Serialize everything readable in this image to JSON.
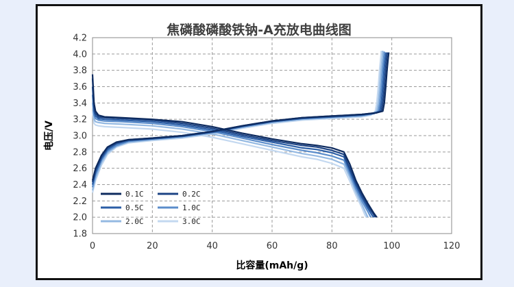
{
  "chart_data": {
    "type": "line",
    "title": "焦磷酸磷酸铁钠-A充放电曲线图",
    "xlabel": "比容量(mAh/g)",
    "ylabel": "电压/V",
    "xlim": [
      0,
      120
    ],
    "ylim": [
      1.8,
      4.2
    ],
    "xticks": [
      0,
      20,
      40,
      60,
      80,
      100,
      120
    ],
    "yticks": [
      1.8,
      2.0,
      2.2,
      2.4,
      2.6,
      2.8,
      3.0,
      3.2,
      3.4,
      3.6,
      3.8,
      4.0,
      4.2
    ],
    "grid": true,
    "legend_position": "bottom-left",
    "series": [
      {
        "name": "0.1C",
        "color": "#0d2a5e",
        "charge": [
          [
            0,
            2.45
          ],
          [
            1,
            2.6
          ],
          [
            3,
            2.76
          ],
          [
            5,
            2.86
          ],
          [
            8,
            2.92
          ],
          [
            12,
            2.95
          ],
          [
            20,
            2.97
          ],
          [
            30,
            3.0
          ],
          [
            40,
            3.05
          ],
          [
            50,
            3.12
          ],
          [
            60,
            3.18
          ],
          [
            70,
            3.22
          ],
          [
            80,
            3.24
          ],
          [
            90,
            3.26
          ],
          [
            95,
            3.28
          ],
          [
            97,
            3.3
          ],
          [
            97.5,
            3.4
          ],
          [
            98,
            3.6
          ],
          [
            98.4,
            3.8
          ],
          [
            98.8,
            3.95
          ],
          [
            99,
            4.02
          ]
        ],
        "discharge": [
          [
            0,
            3.75
          ],
          [
            0.5,
            3.4
          ],
          [
            1,
            3.3
          ],
          [
            2,
            3.25
          ],
          [
            4,
            3.23
          ],
          [
            10,
            3.22
          ],
          [
            20,
            3.2
          ],
          [
            30,
            3.17
          ],
          [
            40,
            3.11
          ],
          [
            50,
            3.03
          ],
          [
            60,
            2.96
          ],
          [
            70,
            2.9
          ],
          [
            75,
            2.88
          ],
          [
            80,
            2.85
          ],
          [
            84,
            2.8
          ],
          [
            86,
            2.65
          ],
          [
            88,
            2.45
          ],
          [
            90,
            2.3
          ],
          [
            92,
            2.17
          ],
          [
            94,
            2.05
          ],
          [
            95,
            2.0
          ]
        ]
      },
      {
        "name": "0.2C",
        "color": "#1c4384",
        "charge": [
          [
            0,
            2.43
          ],
          [
            1,
            2.58
          ],
          [
            3,
            2.74
          ],
          [
            5,
            2.85
          ],
          [
            8,
            2.91
          ],
          [
            12,
            2.95
          ],
          [
            20,
            2.97
          ],
          [
            30,
            3.0
          ],
          [
            40,
            3.05
          ],
          [
            50,
            3.12
          ],
          [
            60,
            3.18
          ],
          [
            70,
            3.22
          ],
          [
            80,
            3.24
          ],
          [
            90,
            3.26
          ],
          [
            95,
            3.28
          ],
          [
            96.5,
            3.3
          ],
          [
            97,
            3.4
          ],
          [
            97.5,
            3.6
          ],
          [
            97.9,
            3.8
          ],
          [
            98.3,
            3.95
          ],
          [
            98.5,
            4.02
          ]
        ],
        "discharge": [
          [
            0,
            3.7
          ],
          [
            0.5,
            3.35
          ],
          [
            1,
            3.27
          ],
          [
            2,
            3.23
          ],
          [
            4,
            3.22
          ],
          [
            10,
            3.21
          ],
          [
            20,
            3.19
          ],
          [
            30,
            3.15
          ],
          [
            40,
            3.09
          ],
          [
            50,
            3.01
          ],
          [
            60,
            2.94
          ],
          [
            70,
            2.88
          ],
          [
            75,
            2.86
          ],
          [
            80,
            2.82
          ],
          [
            84,
            2.77
          ],
          [
            86,
            2.6
          ],
          [
            88,
            2.42
          ],
          [
            90,
            2.27
          ],
          [
            92,
            2.14
          ],
          [
            94,
            2.03
          ],
          [
            94.5,
            2.0
          ]
        ]
      },
      {
        "name": "0.5C",
        "color": "#2b5ea6",
        "charge": [
          [
            0,
            2.4
          ],
          [
            1,
            2.55
          ],
          [
            3,
            2.72
          ],
          [
            5,
            2.83
          ],
          [
            8,
            2.9
          ],
          [
            12,
            2.94
          ],
          [
            20,
            2.96
          ],
          [
            30,
            2.99
          ],
          [
            40,
            3.04
          ],
          [
            50,
            3.11
          ],
          [
            60,
            3.17
          ],
          [
            70,
            3.21
          ],
          [
            80,
            3.23
          ],
          [
            90,
            3.25
          ],
          [
            94,
            3.27
          ],
          [
            96,
            3.3
          ],
          [
            96.5,
            3.4
          ],
          [
            97,
            3.6
          ],
          [
            97.4,
            3.8
          ],
          [
            97.8,
            3.95
          ],
          [
            98,
            4.02
          ]
        ],
        "discharge": [
          [
            0,
            3.6
          ],
          [
            0.5,
            3.3
          ],
          [
            1,
            3.24
          ],
          [
            2,
            3.21
          ],
          [
            4,
            3.2
          ],
          [
            10,
            3.19
          ],
          [
            20,
            3.17
          ],
          [
            30,
            3.13
          ],
          [
            40,
            3.07
          ],
          [
            50,
            2.99
          ],
          [
            60,
            2.92
          ],
          [
            70,
            2.85
          ],
          [
            75,
            2.83
          ],
          [
            80,
            2.79
          ],
          [
            84,
            2.74
          ],
          [
            86,
            2.57
          ],
          [
            88,
            2.39
          ],
          [
            90,
            2.24
          ],
          [
            92,
            2.11
          ],
          [
            93.5,
            2.02
          ],
          [
            94,
            2.0
          ]
        ]
      },
      {
        "name": "1.0C",
        "color": "#5b8dcb",
        "charge": [
          [
            0,
            2.37
          ],
          [
            1,
            2.52
          ],
          [
            3,
            2.7
          ],
          [
            5,
            2.81
          ],
          [
            8,
            2.88
          ],
          [
            12,
            2.93
          ],
          [
            20,
            2.96
          ],
          [
            30,
            2.99
          ],
          [
            40,
            3.04
          ],
          [
            50,
            3.11
          ],
          [
            60,
            3.17
          ],
          [
            70,
            3.21
          ],
          [
            80,
            3.23
          ],
          [
            90,
            3.25
          ],
          [
            94,
            3.27
          ],
          [
            95.5,
            3.3
          ],
          [
            96,
            3.4
          ],
          [
            96.5,
            3.6
          ],
          [
            96.9,
            3.8
          ],
          [
            97.3,
            3.95
          ],
          [
            97.5,
            4.03
          ]
        ],
        "discharge": [
          [
            0,
            3.5
          ],
          [
            0.5,
            3.25
          ],
          [
            1,
            3.21
          ],
          [
            2,
            3.19
          ],
          [
            4,
            3.18
          ],
          [
            10,
            3.17
          ],
          [
            20,
            3.15
          ],
          [
            30,
            3.11
          ],
          [
            40,
            3.05
          ],
          [
            50,
            2.97
          ],
          [
            60,
            2.89
          ],
          [
            70,
            2.82
          ],
          [
            75,
            2.79
          ],
          [
            80,
            2.75
          ],
          [
            84,
            2.7
          ],
          [
            86,
            2.53
          ],
          [
            88,
            2.35
          ],
          [
            90,
            2.2
          ],
          [
            92,
            2.07
          ],
          [
            93,
            2.0
          ]
        ]
      },
      {
        "name": "2.0C",
        "color": "#94b9e2",
        "charge": [
          [
            0,
            2.33
          ],
          [
            1,
            2.48
          ],
          [
            3,
            2.67
          ],
          [
            5,
            2.79
          ],
          [
            8,
            2.87
          ],
          [
            12,
            2.92
          ],
          [
            20,
            2.95
          ],
          [
            30,
            2.98
          ],
          [
            40,
            3.03
          ],
          [
            50,
            3.1
          ],
          [
            60,
            3.16
          ],
          [
            70,
            3.2
          ],
          [
            80,
            3.22
          ],
          [
            90,
            3.24
          ],
          [
            93,
            3.26
          ],
          [
            95,
            3.3
          ],
          [
            95.5,
            3.4
          ],
          [
            96,
            3.6
          ],
          [
            96.4,
            3.8
          ],
          [
            96.8,
            3.95
          ],
          [
            97,
            4.04
          ]
        ],
        "discharge": [
          [
            0,
            3.4
          ],
          [
            0.5,
            3.2
          ],
          [
            1,
            3.17
          ],
          [
            2,
            3.16
          ],
          [
            4,
            3.15
          ],
          [
            10,
            3.14
          ],
          [
            20,
            3.12
          ],
          [
            30,
            3.08
          ],
          [
            40,
            3.02
          ],
          [
            50,
            2.94
          ],
          [
            60,
            2.86
          ],
          [
            70,
            2.78
          ],
          [
            75,
            2.75
          ],
          [
            80,
            2.71
          ],
          [
            84,
            2.65
          ],
          [
            86,
            2.49
          ],
          [
            88,
            2.31
          ],
          [
            90,
            2.16
          ],
          [
            91.5,
            2.04
          ],
          [
            92,
            2.0
          ]
        ]
      },
      {
        "name": "3.0C",
        "color": "#c3d8f0",
        "charge": [
          [
            0,
            2.3
          ],
          [
            1,
            2.45
          ],
          [
            3,
            2.64
          ],
          [
            5,
            2.77
          ],
          [
            8,
            2.86
          ],
          [
            12,
            2.91
          ],
          [
            20,
            2.94
          ],
          [
            30,
            2.97
          ],
          [
            40,
            3.02
          ],
          [
            50,
            3.09
          ],
          [
            60,
            3.15
          ],
          [
            70,
            3.19
          ],
          [
            80,
            3.21
          ],
          [
            90,
            3.23
          ],
          [
            93,
            3.25
          ],
          [
            94.5,
            3.3
          ],
          [
            95,
            3.4
          ],
          [
            95.5,
            3.6
          ],
          [
            95.9,
            3.8
          ],
          [
            96.3,
            3.95
          ],
          [
            96.5,
            4.04
          ]
        ],
        "discharge": [
          [
            0,
            3.3
          ],
          [
            0.5,
            3.15
          ],
          [
            1,
            3.13
          ],
          [
            2,
            3.12
          ],
          [
            4,
            3.11
          ],
          [
            10,
            3.1
          ],
          [
            20,
            3.08
          ],
          [
            30,
            3.04
          ],
          [
            40,
            2.98
          ],
          [
            50,
            2.9
          ],
          [
            60,
            2.82
          ],
          [
            70,
            2.74
          ],
          [
            75,
            2.71
          ],
          [
            80,
            2.66
          ],
          [
            84,
            2.6
          ],
          [
            86,
            2.44
          ],
          [
            88,
            2.27
          ],
          [
            90,
            2.12
          ],
          [
            91,
            2.03
          ],
          [
            91.5,
            2.0
          ]
        ]
      }
    ]
  }
}
